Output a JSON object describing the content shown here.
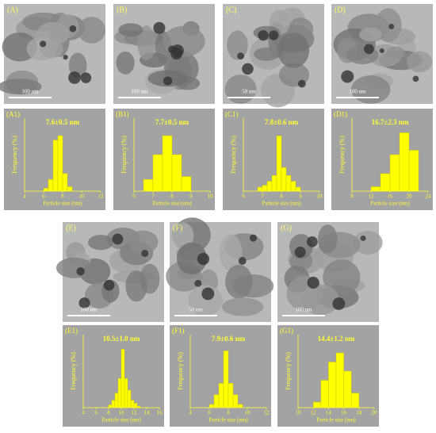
{
  "chart_data": [
    {
      "type": "histogram",
      "label": "(A1)",
      "annotation": "7.6±0.5 nm",
      "xlabel": "Particle size (nm)",
      "ylabel": "Frequency (%)",
      "bins": [
        6,
        6.5,
        7,
        7.5,
        8,
        8.5,
        9
      ],
      "values": [
        2,
        8,
        35,
        38,
        12,
        3
      ],
      "color": "#ffff00",
      "xlim": [
        4,
        12
      ],
      "xticks": [
        4,
        6,
        8,
        10,
        12
      ],
      "ylim": [
        0,
        50
      ]
    },
    {
      "type": "histogram",
      "label": "(B1)",
      "annotation": "7.7±0.5 nm",
      "xlabel": "Particle size (nm)",
      "ylabel": "Frequency (%)",
      "bins": [
        6.5,
        7,
        7.5,
        8,
        8.5,
        9
      ],
      "values": [
        8,
        25,
        38,
        25,
        10
      ],
      "color": "#ffff00",
      "xlim": [
        6,
        10
      ],
      "xticks": [
        6,
        7,
        8,
        9,
        10
      ],
      "ylim": [
        0,
        50
      ]
    },
    {
      "type": "histogram",
      "label": "(C1)",
      "annotation": "7.8±0.6 nm",
      "xlabel": "Particle size (nm)",
      "ylabel": "Frequency (%)",
      "bins": [
        6.75,
        7,
        7.25,
        7.5,
        7.75,
        8,
        8.25,
        8.5,
        8.75,
        9
      ],
      "values": [
        2,
        3,
        5,
        8,
        28,
        12,
        8,
        5,
        2
      ],
      "color": "#ffff00",
      "xlim": [
        6,
        10
      ],
      "xticks": [
        6,
        7,
        8,
        9,
        10
      ],
      "ylim": [
        0,
        37
      ]
    },
    {
      "type": "histogram",
      "label": "(D1)",
      "annotation": "16.7±2.3 nm",
      "xlabel": "Particle size (nm)",
      "ylabel": "Frequency (%)",
      "bins": [
        12,
        14,
        16,
        18,
        20,
        22
      ],
      "values": [
        3,
        12,
        25,
        40,
        28
      ],
      "color": "#ffff00",
      "xlim": [
        8,
        24
      ],
      "xticks": [
        8,
        12,
        16,
        20,
        24
      ],
      "ylim": [
        0,
        50
      ]
    },
    {
      "type": "histogram",
      "label": "(E1)",
      "annotation": "10.5±1.0 nm",
      "xlabel": "Particle size (nm)",
      "ylabel": "Frequency (%)",
      "bins": [
        8,
        8.5,
        9,
        9.5,
        10,
        10.5,
        11,
        11.5,
        12,
        12.5,
        13
      ],
      "values": [
        2,
        5,
        10,
        20,
        40,
        20,
        12,
        5,
        3,
        1
      ],
      "color": "#ffff00",
      "xlim": [
        4,
        16
      ],
      "xticks": [
        4,
        6,
        8,
        10,
        12,
        14,
        16
      ],
      "ylim": [
        0,
        50
      ]
    },
    {
      "type": "histogram",
      "label": "(F1)",
      "annotation": "7.9±0.6 nm",
      "xlabel": "Particle size (nm)",
      "ylabel": "Frequency (%)",
      "bins": [
        6,
        6.5,
        7,
        7.5,
        8,
        8.5,
        9,
        9.5
      ],
      "values": [
        2,
        8,
        15,
        35,
        15,
        8,
        2
      ],
      "color": "#ffff00",
      "xlim": [
        4,
        12
      ],
      "xticks": [
        4,
        6,
        8,
        10,
        12
      ],
      "ylim": [
        0,
        45
      ]
    },
    {
      "type": "histogram",
      "label": "(G1)",
      "annotation": "14.4±1.2 nm",
      "xlabel": "Particle size (nm)",
      "ylabel": "Frequency (%)",
      "bins": [
        12,
        13,
        14,
        15,
        16,
        17,
        18
      ],
      "values": [
        3,
        15,
        25,
        30,
        20,
        8
      ],
      "color": "#ffff00",
      "xlim": [
        10,
        20
      ],
      "xticks": [
        10,
        12,
        14,
        16,
        18,
        20
      ],
      "ylim": [
        0,
        40
      ]
    }
  ],
  "images": [
    {
      "label": "(A)",
      "scale": "100 nm"
    },
    {
      "label": "(B)",
      "scale": "100 nm"
    },
    {
      "label": "(C)",
      "scale": "50 nm"
    },
    {
      "label": "(D)",
      "scale": "100 nm"
    },
    {
      "label": "(E)",
      "scale": "100 nm"
    },
    {
      "label": "(F)",
      "scale": "50 nm"
    },
    {
      "label": "(G)",
      "scale": "100 nm"
    }
  ]
}
